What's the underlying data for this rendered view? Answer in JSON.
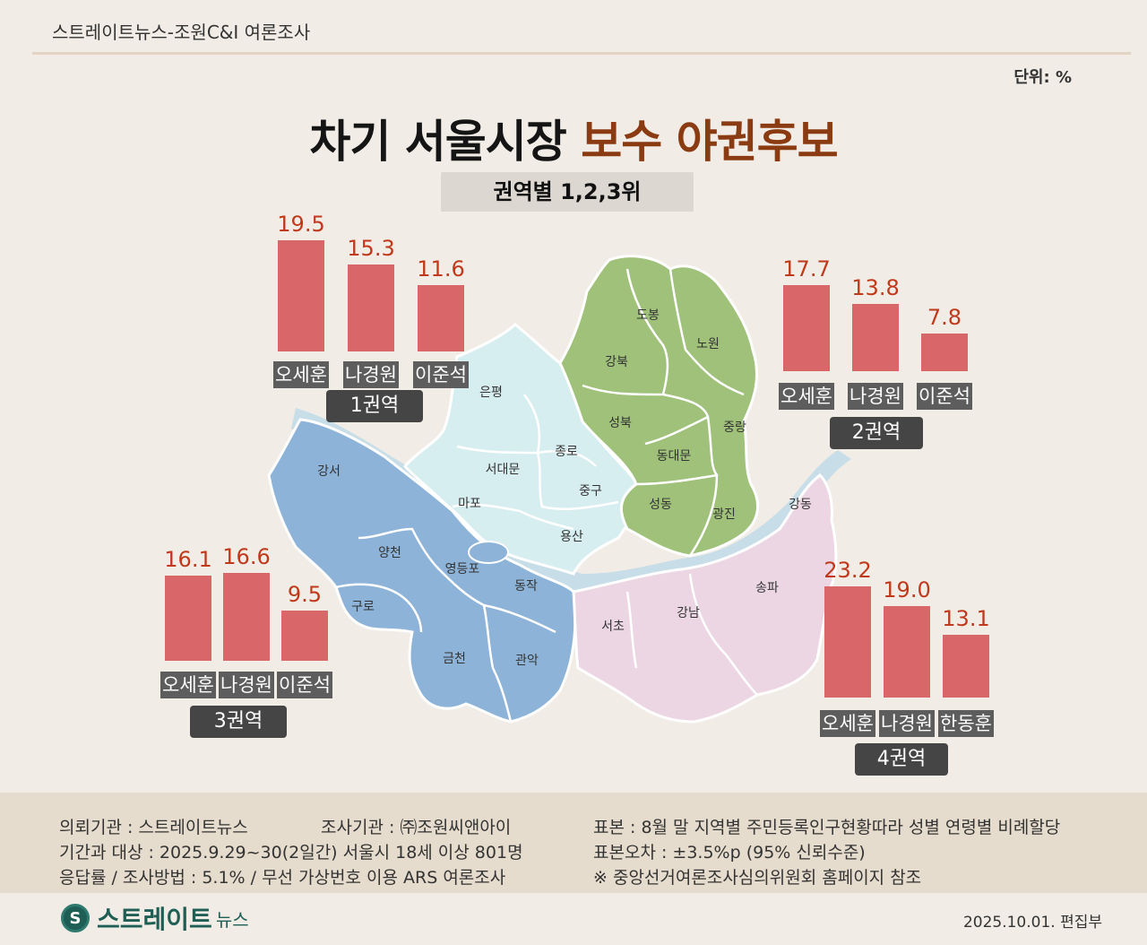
{
  "header": {
    "text": "스트레이트뉴스-조원C&I 여론조사",
    "unit": "단위: %"
  },
  "title": {
    "part1": "차기 서울시장",
    "part2": "보수 야권후보"
  },
  "subtitle": "권역별 1,2,3위",
  "colors": {
    "region1": "#d7eef0",
    "region2": "#9fc17a",
    "region3": "#8db3d8",
    "region4": "#ecd6e3",
    "bar": "#d9676a",
    "value": "#c0391b",
    "river": "#c7dde7"
  },
  "districts": {
    "r1": [
      "은평",
      "서대문",
      "종로",
      "마포",
      "중구",
      "용산"
    ],
    "r2": [
      "도봉",
      "강북",
      "노원",
      "성북",
      "중랑",
      "동대문",
      "성동",
      "광진"
    ],
    "r3": [
      "강서",
      "양천",
      "영등포",
      "구로",
      "동작",
      "금천",
      "관악"
    ],
    "r4": [
      "강동",
      "송파",
      "서초",
      "강남"
    ]
  },
  "chart_data": [
    {
      "type": "bar",
      "region": "1권역",
      "categories": [
        "오세훈",
        "나경원",
        "이준석"
      ],
      "values": [
        19.5,
        15.3,
        11.6
      ]
    },
    {
      "type": "bar",
      "region": "2권역",
      "categories": [
        "오세훈",
        "나경원",
        "이준석"
      ],
      "values": [
        17.7,
        13.8,
        7.8
      ]
    },
    {
      "type": "bar",
      "region": "3권역",
      "categories": [
        "오세훈",
        "나경원",
        "이준석"
      ],
      "values": [
        16.1,
        16.6,
        9.5
      ]
    },
    {
      "type": "bar",
      "region": "4권역",
      "categories": [
        "오세훈",
        "나경원",
        "한동훈"
      ],
      "values": [
        23.2,
        19.0,
        13.1
      ]
    }
  ],
  "footer": {
    "line1a": "의뢰기관 : 스트레이트뉴스",
    "line1b": "조사기관 : ㈜조원씨앤아이",
    "line2": "기간과 대상 : 2025.9.29~30(2일간) 서울시  18세 이상 801명",
    "line3": "응답률 / 조사방법 : 5.1% / 무선 가상번호 이용 ARS 여론조사",
    "line4": "표본 : 8월 말 지역별 주민등록인구현황따라 성별 연령별 비례할당",
    "line5": "표본오차 : ±3.5%p (95% 신뢰수준)",
    "line6": "※ 중앙선거여론조사심의위원회 홈페이지 참조"
  },
  "logo": {
    "main": "스트레이트",
    "sub": "뉴스"
  },
  "date": "2025.10.01. 편집부"
}
